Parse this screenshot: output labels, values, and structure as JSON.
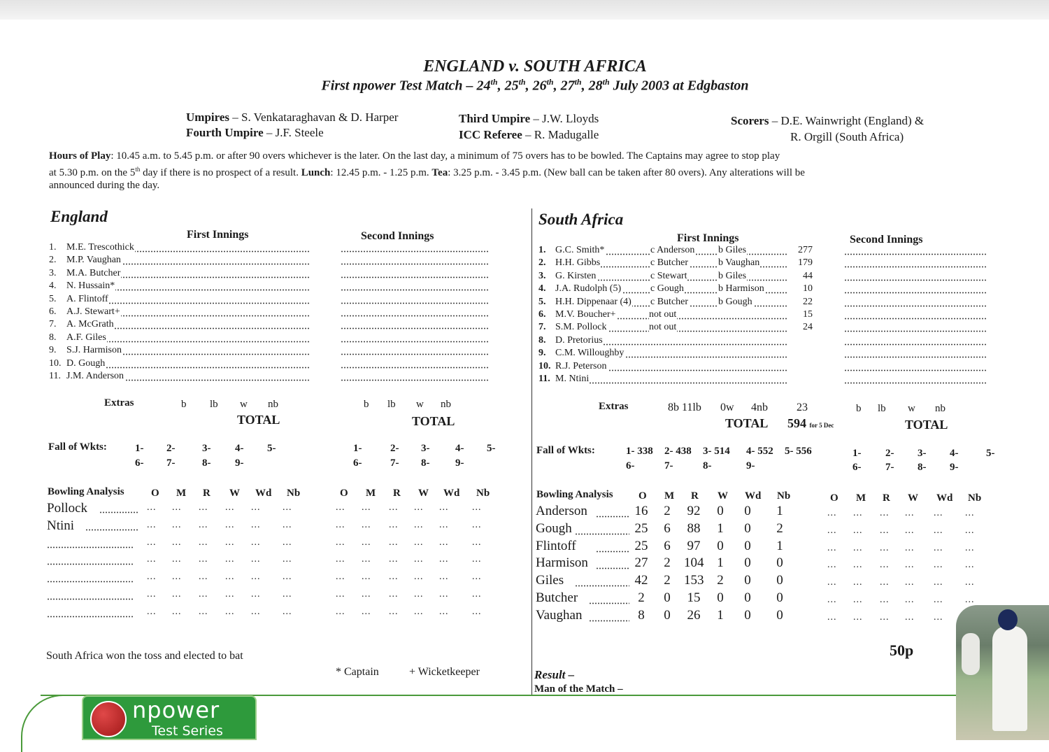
{
  "header": {
    "title": "ENGLAND v. SOUTH AFRICA",
    "subtitle_pre": "First npower Test Match – 24",
    "subtitle_days": [
      {
        "sup": "th",
        "after": ", 25"
      },
      {
        "sup": "th",
        "after": ", 26"
      },
      {
        "sup": "th",
        "after": ", 27"
      },
      {
        "sup": "th",
        "after": ", 28"
      },
      {
        "sup": "th",
        "after": " July 2003 at Edgbaston"
      }
    ]
  },
  "officials": {
    "umpires_label": "Umpires",
    "umpires": " – S. Venkataraghavan & D. Harper",
    "fourth_label": "Fourth Umpire",
    "fourth": " – J.F. Steele",
    "third_label": "Third Umpire",
    "third": " – J.W. Lloyds",
    "referee_label": "ICC Referee",
    "referee": " – R. Madugalle",
    "scorers_label": "Scorers",
    "scorers_line1": " – D.E. Wainwright (England) &",
    "scorers_line2": "R. Orgill (South Africa)"
  },
  "hours": {
    "label": "Hours of Play",
    "line1": ": 10.45 a.m. to 5.45 p.m. or after 90 overs whichever is the later.  On the last day, a minimum of 75 overs has to be bowled.  The Captains may agree to stop play",
    "line2_pre": "at 5.30 p.m. on the 5",
    "line2_sup": "th",
    "line2_mid": " day if there is no prospect of a result.  ",
    "lunch_label": "Lunch",
    "lunch": ": 12.45 p.m. - 1.25 p.m.  ",
    "tea_label": "Tea",
    "tea": ": 3.25 p.m. - 3.45 p.m.  (New ball can be taken after 80 overs). Any alterations will be",
    "line3": "announced during the day."
  },
  "england": {
    "team": "England",
    "first_innings": "First Innings",
    "second_innings": "Second Innings",
    "batsmen": [
      {
        "no": "1.",
        "name": "M.E. Trescothick"
      },
      {
        "no": "2.",
        "name": "M.P. Vaughan"
      },
      {
        "no": "3.",
        "name": "M.A. Butcher"
      },
      {
        "no": "4.",
        "name": "N. Hussain*"
      },
      {
        "no": "5.",
        "name": "A. Flintoff"
      },
      {
        "no": "6.",
        "name": "A.J. Stewart+"
      },
      {
        "no": "7.",
        "name": "A. McGrath"
      },
      {
        "no": "8.",
        "name": "A.F. Giles"
      },
      {
        "no": "9.",
        "name": "S.J. Harmison"
      },
      {
        "no": "10.",
        "name": "D. Gough"
      },
      {
        "no": "11.",
        "name": "J.M. Anderson"
      }
    ],
    "extras_label": "Extras",
    "extras_cols": [
      "b",
      "lb",
      "w",
      "nb"
    ],
    "total_label": "TOTAL",
    "fow_label": "Fall of Wkts:",
    "fow_row1": [
      "1-",
      "2-",
      "3-",
      "4-",
      "5-"
    ],
    "fow_row2": [
      "6-",
      "7-",
      "8-",
      "9-"
    ],
    "bowling_label": "Bowling Analysis",
    "bowling_cols": [
      "O",
      "M",
      "R",
      "W",
      "Wd",
      "Nb"
    ],
    "bowlers": [
      "Pollock",
      "Ntini",
      "",
      "",
      "",
      "",
      ""
    ]
  },
  "south_africa": {
    "team": "South Africa",
    "first_innings": "First Innings",
    "second_innings": "Second Innings",
    "batsmen": [
      {
        "no": "1.",
        "name": "G.C. Smith*",
        "how": "c Anderson",
        "bowler": "b Giles",
        "runs": "277"
      },
      {
        "no": "2.",
        "name": "H.H. Gibbs",
        "how": "c Butcher",
        "bowler": "b Vaughan",
        "runs": "179"
      },
      {
        "no": "3.",
        "name": "G. Kirsten",
        "how": "c Stewart",
        "bowler": "b Giles",
        "runs": "44"
      },
      {
        "no": "4.",
        "name": "J.A. Rudolph (5)",
        "how": "c Gough",
        "bowler": "b Harmison",
        "runs": "10"
      },
      {
        "no": "5.",
        "name": "H.H. Dippenaar (4)",
        "how": "c Butcher",
        "bowler": "b Gough",
        "runs": "22"
      },
      {
        "no": "6.",
        "name": "M.V. Boucher+",
        "how": "not out",
        "bowler": "",
        "runs": "15"
      },
      {
        "no": "7.",
        "name": "S.M. Pollock",
        "how": "not out",
        "bowler": "",
        "runs": "24"
      },
      {
        "no": "8.",
        "name": "D. Pretorius",
        "how": "",
        "bowler": "",
        "runs": ""
      },
      {
        "no": "9.",
        "name": "C.M. Willoughby",
        "how": "",
        "bowler": "",
        "runs": ""
      },
      {
        "no": "10.",
        "name": "R.J. Peterson",
        "how": "",
        "bowler": "",
        "runs": ""
      },
      {
        "no": "11.",
        "name": "M. Ntini",
        "how": "",
        "bowler": "",
        "runs": ""
      }
    ],
    "extras_label": "Extras",
    "extras_detail": [
      "8b 11lb",
      "0w",
      "4nb"
    ],
    "extras_total": "23",
    "extras_cols": [
      "b",
      "lb",
      "w",
      "nb"
    ],
    "total_label": "TOTAL",
    "total": "594",
    "total_note": "for 5 Dec",
    "fow_label": "Fall of Wkts:",
    "fow_row1": [
      "1- 338",
      "2- 438",
      "3- 514",
      "4- 552",
      "5- 556"
    ],
    "fow_row2": [
      "6-",
      "7-",
      "8-",
      "9-"
    ],
    "fow2_row1": [
      "1-",
      "2-",
      "3-",
      "4-",
      "5-"
    ],
    "fow2_row2": [
      "6-",
      "7-",
      "8-",
      "9-"
    ],
    "bowling_label": "Bowling Analysis",
    "bowling_cols": [
      "O",
      "M",
      "R",
      "W",
      "Wd",
      "Nb"
    ],
    "bowlers": [
      {
        "name": "Anderson",
        "figs": [
          "16",
          "2",
          "92",
          "0",
          "0",
          "1"
        ]
      },
      {
        "name": "Gough",
        "figs": [
          "25",
          "6",
          "88",
          "1",
          "0",
          "2"
        ]
      },
      {
        "name": "Flintoff",
        "figs": [
          "25",
          "6",
          "97",
          "0",
          "0",
          "1"
        ]
      },
      {
        "name": "Harmison",
        "figs": [
          "27",
          "2",
          "104",
          "1",
          "0",
          "0"
        ]
      },
      {
        "name": "Giles",
        "figs": [
          "42",
          "2",
          "153",
          "2",
          "0",
          "0"
        ]
      },
      {
        "name": "Butcher",
        "figs": [
          "2",
          "0",
          "15",
          "0",
          "0",
          "0"
        ]
      },
      {
        "name": "Vaughan",
        "figs": [
          "8",
          "0",
          "26",
          "1",
          "0",
          "0"
        ]
      }
    ]
  },
  "footer": {
    "toss": "South Africa won the toss and elected to bat",
    "captain_note": "*  Captain",
    "keeper_note": "+  Wicketkeeper",
    "result_label": "Result –",
    "motm_label": "Man of the Match –",
    "price": "50p",
    "logo_brand": "npower",
    "logo_series": "Test Series"
  },
  "colors": {
    "brand_green": "#2e9a3c",
    "ball_red": "#c02828"
  }
}
